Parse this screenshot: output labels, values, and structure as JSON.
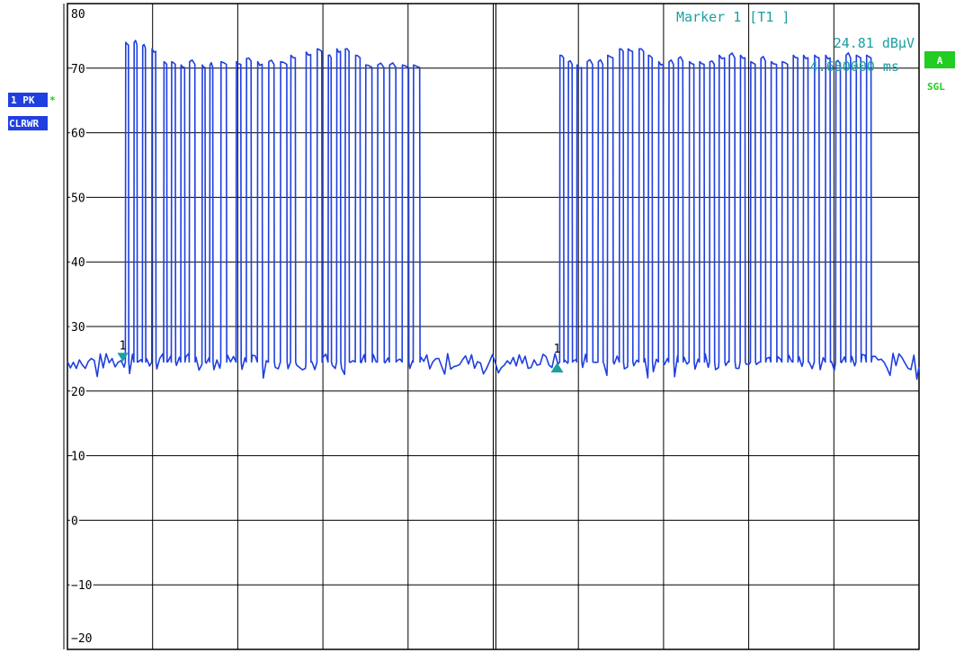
{
  "colors": {
    "trace": "#1f3fe0",
    "marker": "#1aa0a0",
    "badge_bg": "#1f3fe0",
    "badge_text": "#ffffff",
    "status_bg": "#22cc22",
    "status_text_green": "#22cc22",
    "grid": "#000000"
  },
  "badges": {
    "trace_mode": "1 PK",
    "trace_star": "*",
    "clear_write": "CLRWR",
    "status_a": "A",
    "status_sgl": "SGL"
  },
  "marker_info": {
    "line1": "Marker 1 [T1 ]",
    "line2": "24.81 dBµV",
    "line3": "4.630000 ms"
  },
  "chart_data": {
    "type": "line",
    "title": "",
    "xlabel": "",
    "ylabel": "",
    "ylim": [
      -20,
      80
    ],
    "yticks": [
      80,
      70,
      60,
      50,
      40,
      30,
      20,
      10,
      0,
      -10,
      -20
    ],
    "ytick_labels": [
      "80",
      "70",
      "60",
      "50",
      "40",
      "30",
      "20",
      "10",
      "0",
      "−10",
      "−20"
    ],
    "xlim": [
      0,
      10
    ],
    "x_divisions": 10,
    "grid": true,
    "series": [
      {
        "baseline_level": 24.5,
        "high_level": 70.5,
        "bursts": [
          {
            "start": 0.65,
            "end": 4.3,
            "pulses": [
              [
                0.68,
                0.72,
                74
              ],
              [
                0.78,
                0.82,
                74
              ],
              [
                0.88,
                0.92,
                73.5
              ],
              [
                0.99,
                1.04,
                73
              ],
              [
                1.13,
                1.17,
                71
              ],
              [
                1.22,
                1.27,
                71
              ],
              [
                1.33,
                1.38,
                70.5
              ],
              [
                1.43,
                1.5,
                71
              ],
              [
                1.58,
                1.62,
                70.5
              ],
              [
                1.67,
                1.71,
                70.5
              ],
              [
                1.8,
                1.87,
                71
              ],
              [
                1.98,
                2.04,
                71
              ],
              [
                2.1,
                2.16,
                71.5
              ],
              [
                2.23,
                2.29,
                71
              ],
              [
                2.36,
                2.43,
                71
              ],
              [
                2.5,
                2.58,
                71
              ],
              [
                2.62,
                2.68,
                72
              ],
              [
                2.8,
                2.86,
                72.5
              ],
              [
                2.93,
                2.99,
                73
              ],
              [
                3.06,
                3.1,
                72
              ],
              [
                3.16,
                3.21,
                73
              ],
              [
                3.26,
                3.31,
                73
              ],
              [
                3.38,
                3.44,
                72
              ],
              [
                3.5,
                3.58,
                70.5
              ],
              [
                3.64,
                3.72,
                70.5
              ],
              [
                3.78,
                3.86,
                70.5
              ],
              [
                3.93,
                4.01,
                70.5
              ],
              [
                4.06,
                4.14,
                70.5
              ]
            ]
          },
          {
            "start": 5.7,
            "end": 9.6,
            "pulses": [
              [
                5.78,
                5.83,
                72
              ],
              [
                5.88,
                5.93,
                71
              ],
              [
                5.98,
                6.04,
                70.5
              ],
              [
                6.1,
                6.17,
                71
              ],
              [
                6.23,
                6.29,
                71
              ],
              [
                6.34,
                6.41,
                72
              ],
              [
                6.48,
                6.53,
                73
              ],
              [
                6.58,
                6.64,
                73
              ],
              [
                6.71,
                6.77,
                73
              ],
              [
                6.82,
                6.87,
                72
              ],
              [
                6.94,
                7.0,
                71
              ],
              [
                7.06,
                7.12,
                71
              ],
              [
                7.17,
                7.23,
                71.5
              ],
              [
                7.3,
                7.36,
                71
              ],
              [
                7.42,
                7.48,
                71
              ],
              [
                7.54,
                7.6,
                71
              ],
              [
                7.65,
                7.72,
                72
              ],
              [
                7.77,
                7.84,
                72
              ],
              [
                7.9,
                7.96,
                72
              ],
              [
                8.02,
                8.08,
                71
              ],
              [
                8.14,
                8.2,
                71.5
              ],
              [
                8.26,
                8.33,
                71
              ],
              [
                8.39,
                8.46,
                71
              ],
              [
                8.52,
                8.58,
                72
              ],
              [
                8.64,
                8.7,
                72
              ],
              [
                8.77,
                8.83,
                72
              ],
              [
                8.9,
                8.96,
                72
              ],
              [
                9.02,
                9.08,
                71
              ],
              [
                9.14,
                9.2,
                72
              ],
              [
                9.26,
                9.32,
                72
              ],
              [
                9.38,
                9.44,
                72
              ]
            ]
          }
        ]
      }
    ],
    "markers": [
      {
        "label": "1",
        "x": 0.65,
        "y": 24.81,
        "direction": "down"
      },
      {
        "label": "1",
        "x": 5.75,
        "y": 24.0,
        "direction": "up"
      }
    ]
  }
}
